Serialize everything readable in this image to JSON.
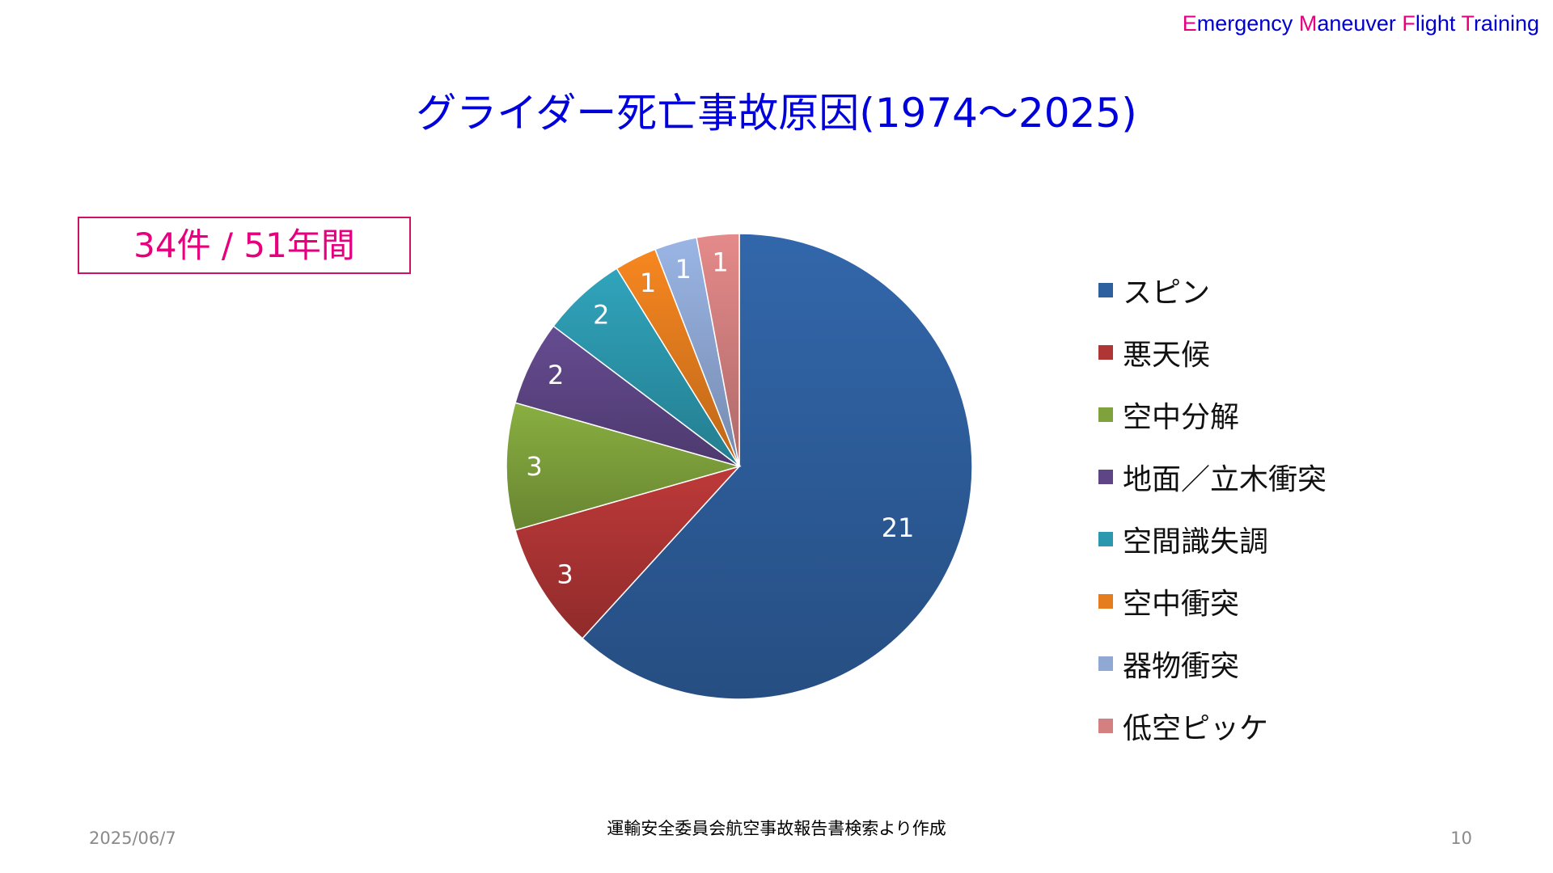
{
  "header": {
    "brand": [
      {
        "initial": "E",
        "rest": "mergency "
      },
      {
        "initial": "M",
        "rest": "aneuver "
      },
      {
        "initial": "F",
        "rest": "light "
      },
      {
        "initial": "T",
        "rest": "raining"
      }
    ]
  },
  "colors": {
    "title": "#0000dd",
    "accent": "#e6007e"
  },
  "summary_box": "34件 / 51年間",
  "footer": {
    "source": "運輸安全委員会航空事故報告書検索より作成",
    "date": "2025/06/7",
    "page": "10"
  },
  "chart_data": {
    "type": "pie",
    "title": "グライダー死亡事故原因(1974～2025)",
    "legend_position": "right",
    "slices": [
      {
        "label": "スピン",
        "value": 21,
        "color": "#2e5f9e"
      },
      {
        "label": "悪天候",
        "value": 3,
        "color": "#b03535"
      },
      {
        "label": "空中分解",
        "value": 3,
        "color": "#7fa23c"
      },
      {
        "label": "地面／立木衝突",
        "value": 2,
        "color": "#5e4686"
      },
      {
        "label": "空間識失調",
        "value": 2,
        "color": "#2c98ae"
      },
      {
        "label": "空中衝突",
        "value": 1,
        "color": "#e57d1e"
      },
      {
        "label": "器物衝突",
        "value": 1,
        "color": "#8fa8d4"
      },
      {
        "label": "低空ピッケ",
        "value": 1,
        "color": "#d48080"
      }
    ]
  }
}
